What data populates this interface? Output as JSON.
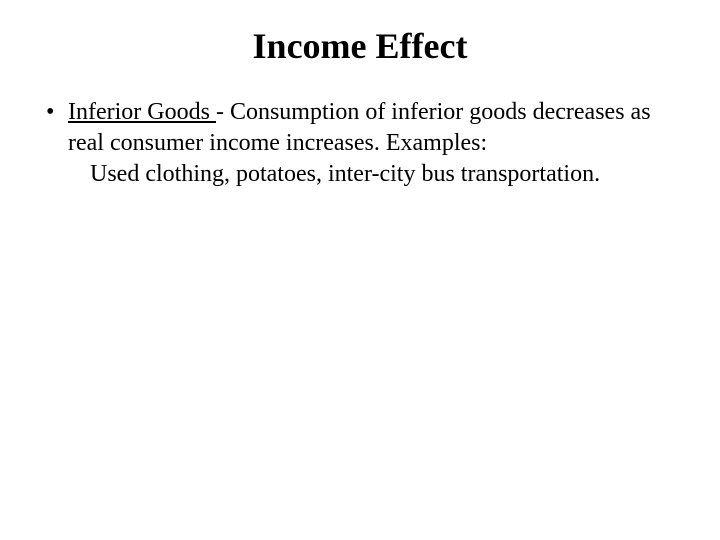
{
  "slide": {
    "title": "Income Effect",
    "background_color": "#ffffff",
    "text_color": "#000000",
    "title_fontsize": 36,
    "body_fontsize": 24,
    "font_family": "Times New Roman",
    "bullet": {
      "marker": "•",
      "term": "Inferior Goods ",
      "definition_part1": "- Consumption of inferior goods decreases as real consumer income increases. Examples:",
      "examples": "Used clothing, potatoes, inter-city bus   transportation."
    }
  }
}
